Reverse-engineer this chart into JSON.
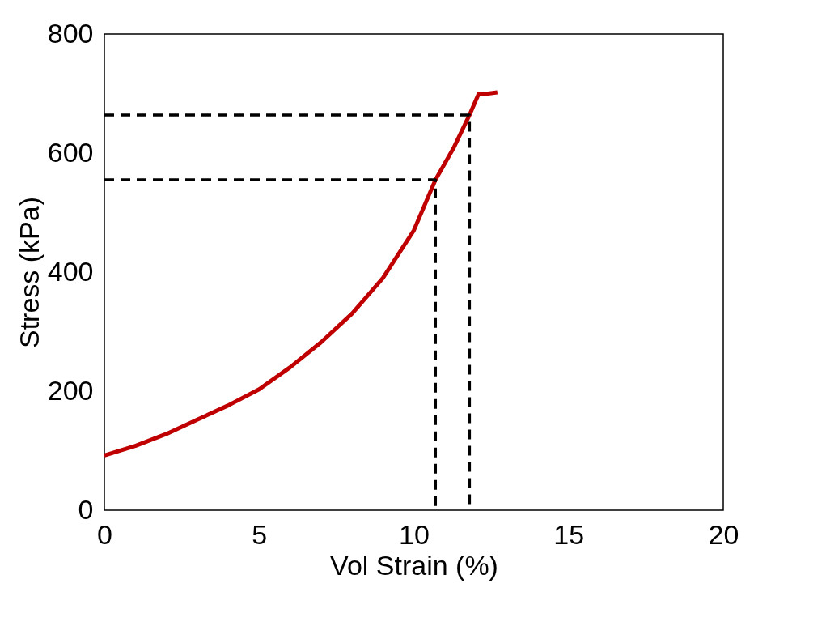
{
  "chart_data": {
    "type": "line",
    "xlabel": "Vol Strain (%)",
    "ylabel": "Stress (kPa)",
    "xlim": [
      0,
      20
    ],
    "ylim": [
      0,
      800
    ],
    "xticks": [
      0,
      5,
      10,
      15,
      20
    ],
    "yticks": [
      0,
      200,
      400,
      600,
      800
    ],
    "grid": false,
    "marker": "none",
    "series": [
      {
        "color": "#c00000",
        "line_style": "solid",
        "x": [
          0,
          1,
          2,
          3,
          4,
          5,
          6,
          7,
          8,
          9,
          10,
          10.7,
          11.3,
          11.8,
          12.1,
          12.4,
          12.7
        ],
        "values": [
          92,
          108,
          128,
          152,
          176,
          203,
          240,
          282,
          330,
          390,
          470,
          555,
          610,
          664,
          700,
          700,
          702
        ]
      },
      {
        "color": "#000000",
        "line_style": "dashed",
        "x": [
          0,
          10.7,
          10.7
        ],
        "values": [
          555,
          555,
          0
        ]
      },
      {
        "color": "#000000",
        "line_style": "dashed",
        "x": [
          0,
          11.8,
          11.8
        ],
        "values": [
          664,
          664,
          0
        ]
      }
    ]
  }
}
